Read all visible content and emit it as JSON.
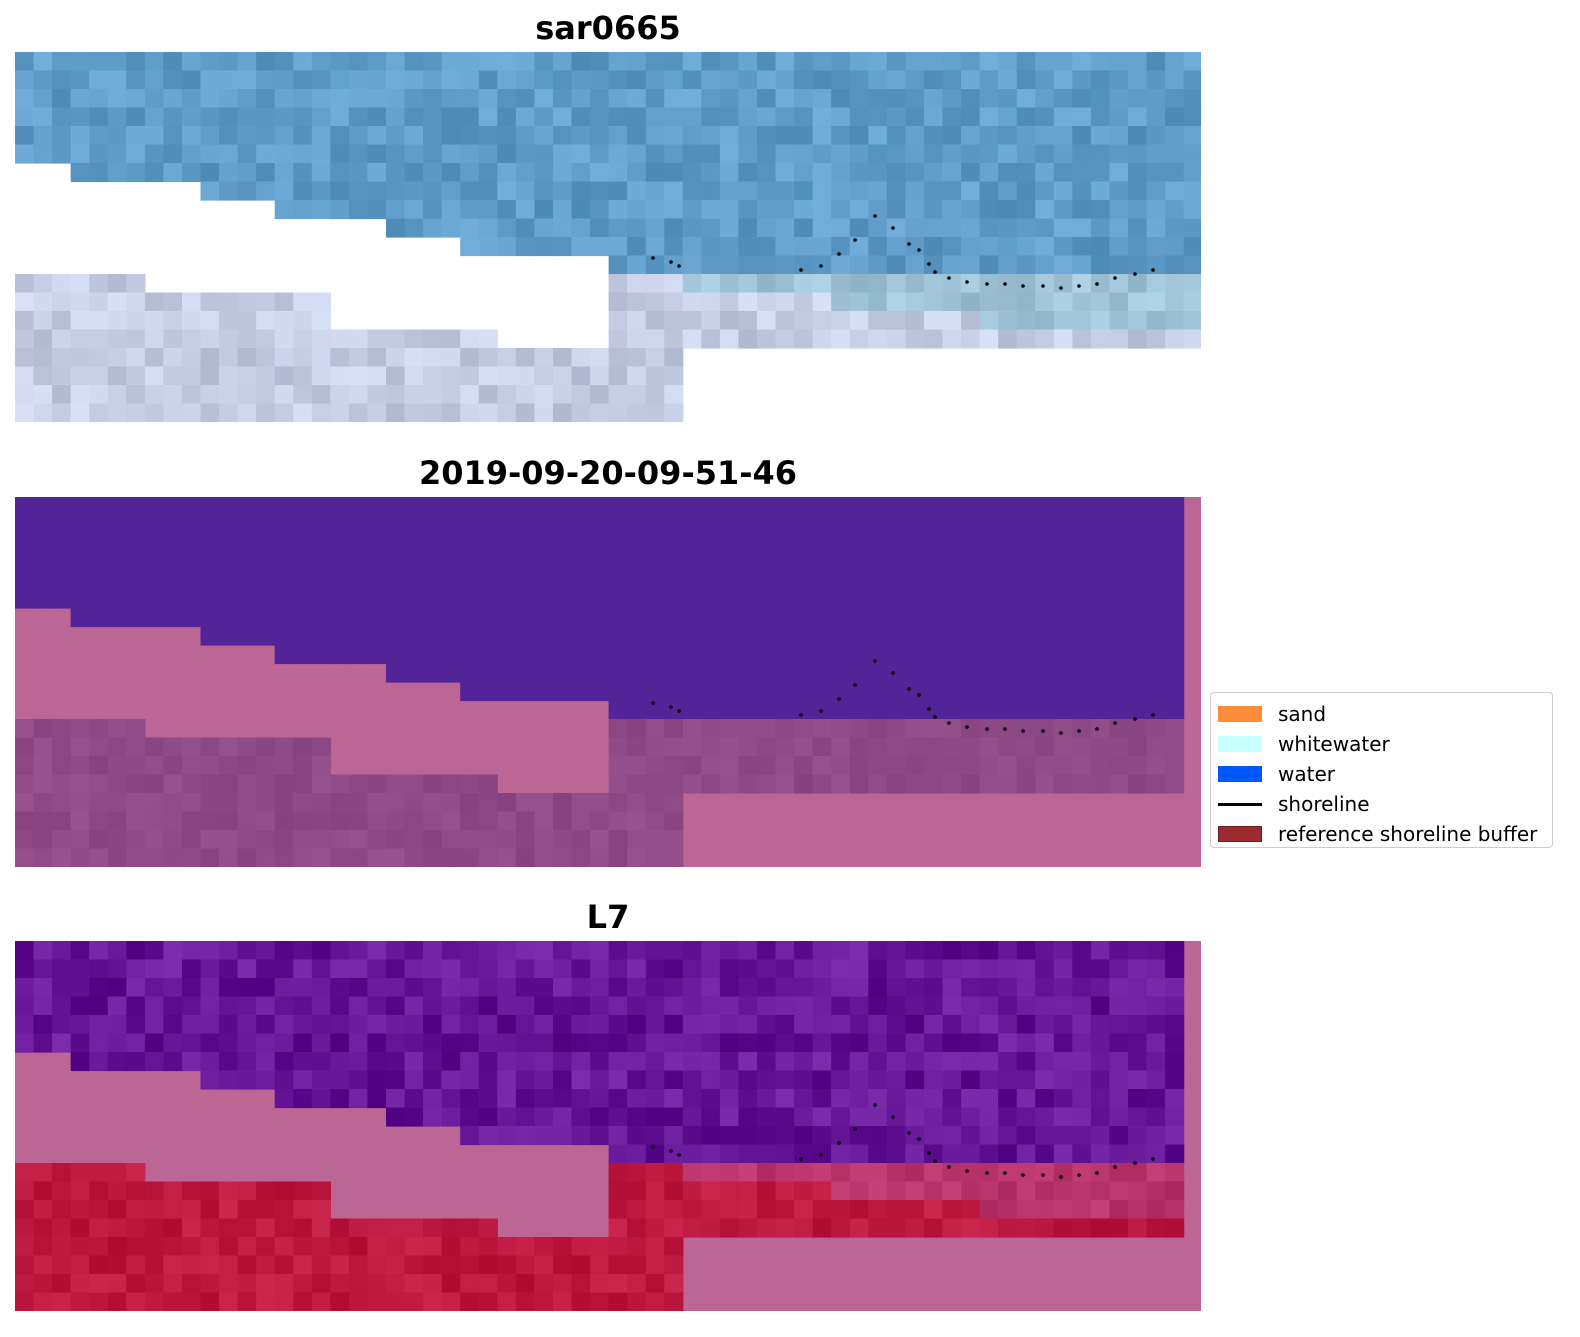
{
  "panels": [
    {
      "title": "sar0665",
      "style": "sar"
    },
    {
      "title": "2019-09-20-09-51-46",
      "style": "class"
    },
    {
      "title": "L7",
      "style": "l7"
    }
  ],
  "legend": {
    "items": [
      {
        "label": "sand",
        "kind": "patch",
        "color": "#ff8c3c"
      },
      {
        "label": "whitewater",
        "kind": "patch",
        "color": "#c8ffff"
      },
      {
        "label": "water",
        "kind": "patch",
        "color": "#0057ff"
      },
      {
        "label": "shoreline",
        "kind": "line",
        "color": "#000000"
      },
      {
        "label": "reference shoreline buffer",
        "kind": "patch",
        "color": "#9c2a2e",
        "edge": "#6e1a1c"
      }
    ]
  },
  "colors": {
    "water_sar": "#5f9dc8",
    "sand_sar": "#c4cde4",
    "water_class": "#522497",
    "land_class": "#bc6695",
    "buffer_class": "#8e4a86",
    "water_l7": "#651696",
    "land_l7": "#bc6695",
    "sand_l7": "#bc1840"
  }
}
